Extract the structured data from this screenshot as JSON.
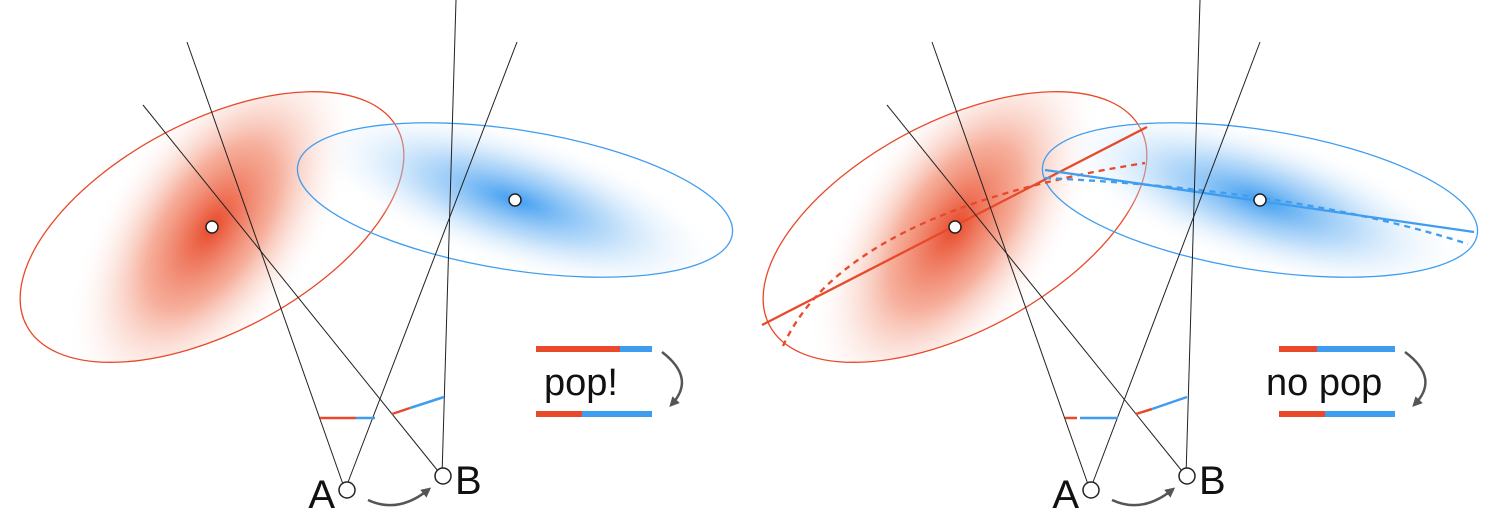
{
  "colors": {
    "red": "#E8492A",
    "blue": "#3F9DF0",
    "ray": "#222222",
    "arrow": "#555555"
  },
  "panels": [
    {
      "id": "left",
      "camera_a_label": "A",
      "camera_b_label": "B",
      "annotation": "pop!"
    },
    {
      "id": "right",
      "camera_a_label": "A",
      "camera_b_label": "B",
      "annotation": "no pop"
    }
  ]
}
